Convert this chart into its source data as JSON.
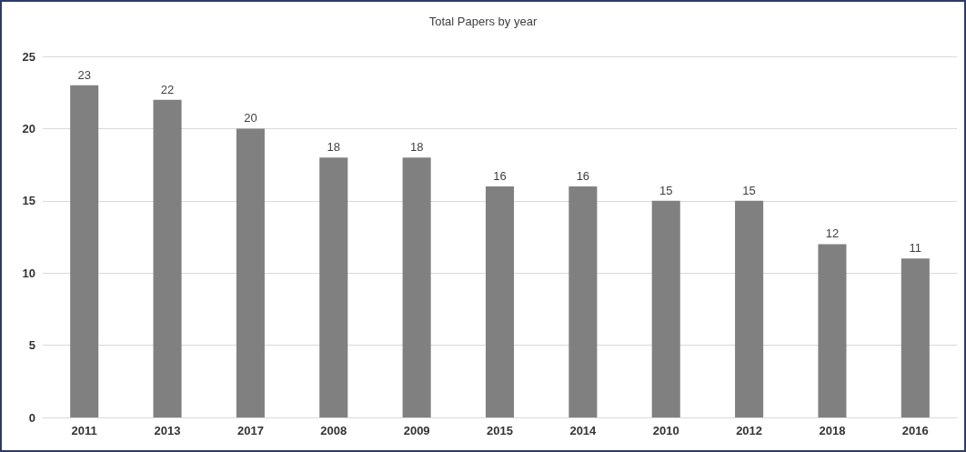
{
  "chart_data": {
    "type": "bar",
    "title": "Total Papers by year",
    "categories": [
      "2011",
      "2013",
      "2017",
      "2008",
      "2009",
      "2015",
      "2014",
      "2010",
      "2012",
      "2018",
      "2016"
    ],
    "values": [
      23,
      22,
      20,
      18,
      18,
      16,
      16,
      15,
      15,
      12,
      11
    ],
    "color": "#808080",
    "ylim": [
      0,
      25
    ],
    "yticks": [
      0,
      5,
      10,
      15,
      20,
      25
    ],
    "grid": "y",
    "data_labels": true
  }
}
